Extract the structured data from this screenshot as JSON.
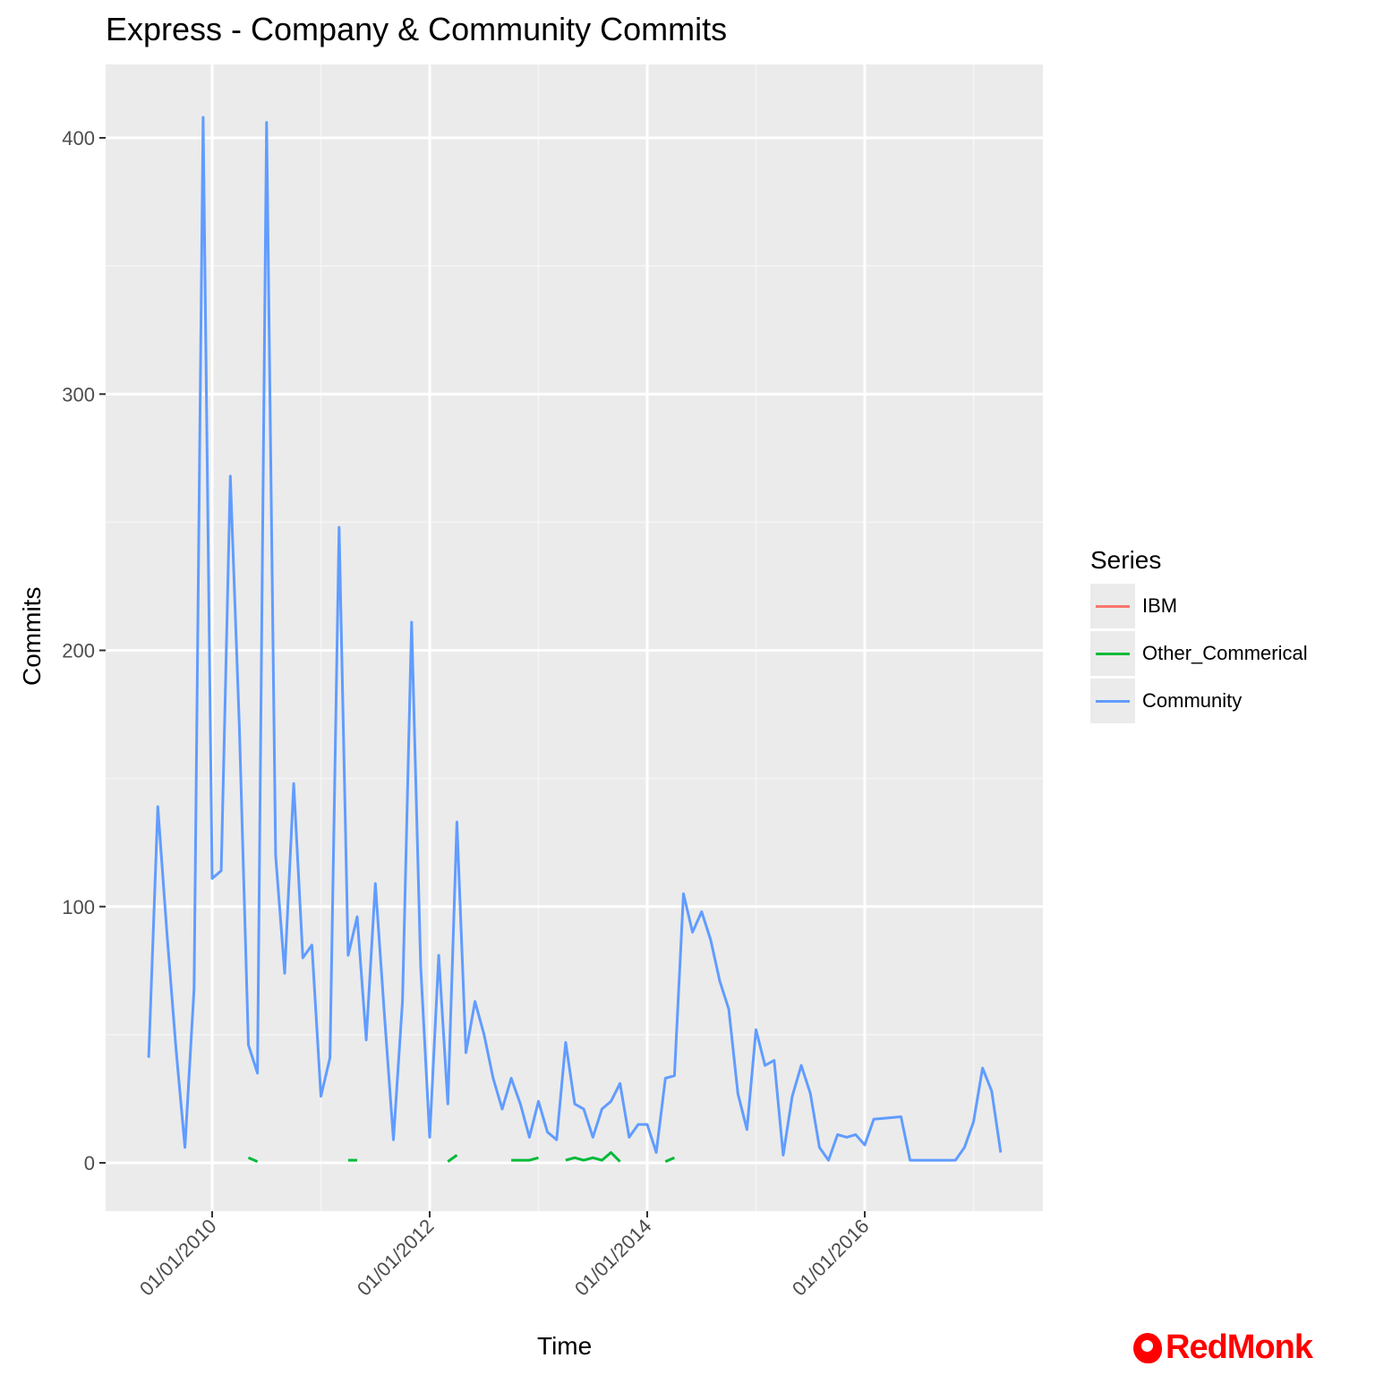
{
  "title": "Express - Company & Community Commits",
  "logo_text": "RedMonk",
  "chart_data": {
    "type": "line",
    "title": "Express - Company & Community Commits",
    "xlabel": "Time",
    "ylabel": "Commits",
    "x_ticks": [
      "01/01/2010",
      "01/01/2012",
      "01/01/2014",
      "01/01/2016"
    ],
    "y_ticks": [
      0,
      100,
      200,
      300,
      400
    ],
    "ylim": [
      -18,
      428
    ],
    "grid": true,
    "legend": {
      "title": "Series",
      "position": "right",
      "entries": [
        "IBM",
        "Other_Commerical",
        "Community"
      ]
    },
    "colors": {
      "IBM": "#f8766d",
      "Other_Commerical": "#00ba38",
      "Community": "#619cff"
    },
    "series": [
      {
        "name": "Community",
        "x": [
          "2009-06",
          "2009-07",
          "2009-08",
          "2009-09",
          "2009-10",
          "2009-11",
          "2009-12",
          "2010-01",
          "2010-02",
          "2010-03",
          "2010-04",
          "2010-05",
          "2010-06",
          "2010-07",
          "2010-08",
          "2010-09",
          "2010-10",
          "2010-11",
          "2010-12",
          "2011-01",
          "2011-02",
          "2011-03",
          "2011-04",
          "2011-05",
          "2011-06",
          "2011-07",
          "2011-08",
          "2011-09",
          "2011-10",
          "2011-11",
          "2011-12",
          "2012-01",
          "2012-02",
          "2012-03",
          "2012-04",
          "2012-05",
          "2012-06",
          "2012-07",
          "2012-08",
          "2012-09",
          "2012-10",
          "2012-11",
          "2012-12",
          "2013-01",
          "2013-02",
          "2013-03",
          "2013-04",
          "2013-05",
          "2013-06",
          "2013-07",
          "2013-08",
          "2013-09",
          "2013-10",
          "2013-11",
          "2013-12",
          "2014-01",
          "2014-02",
          "2014-03",
          "2014-04",
          "2014-05",
          "2014-06",
          "2014-07",
          "2014-08",
          "2014-09",
          "2014-10",
          "2014-11",
          "2014-12",
          "2015-01",
          "2015-02",
          "2015-03",
          "2015-04",
          "2015-05",
          "2015-06",
          "2015-07",
          "2015-08",
          "2015-09",
          "2015-10",
          "2015-11",
          "2015-12",
          "2016-01",
          "2016-02",
          "2016-05",
          "2016-06",
          "2016-08",
          "2016-11",
          "2016-12",
          "2017-01",
          "2017-02",
          "2017-03",
          "2017-04"
        ],
        "values": [
          41,
          139,
          90,
          45,
          6,
          68,
          408,
          111,
          114,
          268,
          170,
          46,
          35,
          406,
          120,
          74,
          148,
          80,
          85,
          26,
          41,
          248,
          81,
          96,
          48,
          109,
          58,
          9,
          63,
          211,
          77,
          10,
          81,
          23,
          133,
          43,
          63,
          50,
          33,
          21,
          33,
          23,
          10,
          24,
          12,
          9,
          47,
          23,
          21,
          10,
          21,
          24,
          31,
          10,
          15,
          15,
          4,
          33,
          34,
          105,
          90,
          98,
          87,
          71,
          60,
          27,
          13,
          52,
          38,
          40,
          3,
          26,
          38,
          27,
          6,
          1,
          11,
          10,
          11,
          7,
          17,
          18,
          1,
          1,
          1,
          6,
          16,
          37,
          28,
          4
        ]
      },
      {
        "name": "Other_Commerical",
        "segments": [
          {
            "x": [
              "2010-05",
              "2010-06"
            ],
            "values": [
              2,
              0.5
            ]
          },
          {
            "x": [
              "2011-04",
              "2011-05"
            ],
            "values": [
              1,
              1
            ]
          },
          {
            "x": [
              "2012-03",
              "2012-04"
            ],
            "values": [
              0.5,
              3
            ]
          },
          {
            "x": [
              "2012-10",
              "2012-11",
              "2012-12",
              "2013-01"
            ],
            "values": [
              1,
              1,
              1,
              2
            ]
          },
          {
            "x": [
              "2013-04",
              "2013-05",
              "2013-06",
              "2013-07",
              "2013-08",
              "2013-09",
              "2013-10"
            ],
            "values": [
              1,
              2,
              1,
              2,
              1,
              4,
              0.5
            ]
          },
          {
            "x": [
              "2014-03",
              "2014-04"
            ],
            "values": [
              0.5,
              2
            ]
          }
        ]
      },
      {
        "name": "IBM",
        "values": []
      }
    ]
  }
}
